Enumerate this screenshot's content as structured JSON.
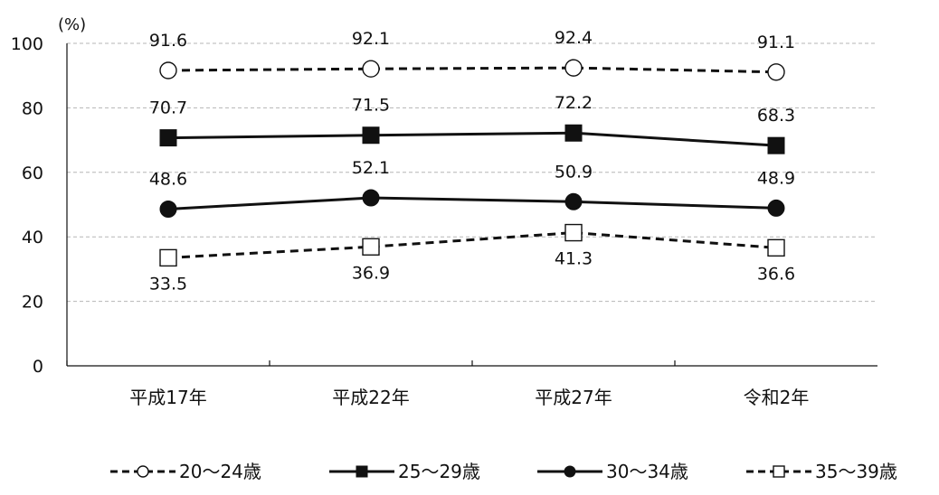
{
  "chart_data": {
    "type": "line",
    "unit_label": "(%)",
    "categories": [
      "平成17年",
      "平成22年",
      "平成27年",
      "令和2年"
    ],
    "ylim": [
      0,
      100
    ],
    "yticks": [
      "0",
      "20",
      "40",
      "60",
      "80",
      "100"
    ],
    "grid": true,
    "legend_position": "bottom",
    "series": [
      {
        "name": "20～24歳",
        "values": [
          91.6,
          92.1,
          92.4,
          91.1
        ],
        "labels": [
          "91.6",
          "92.1",
          "92.4",
          "91.1"
        ],
        "line": "dashed",
        "marker": "circle-open",
        "label_pos": "above"
      },
      {
        "name": "25～29歳",
        "values": [
          70.7,
          71.5,
          72.2,
          68.3
        ],
        "labels": [
          "70.7",
          "71.5",
          "72.2",
          "68.3"
        ],
        "line": "solid",
        "marker": "square-filled",
        "label_pos": "above"
      },
      {
        "name": "30～34歳",
        "values": [
          48.6,
          52.1,
          50.9,
          48.9
        ],
        "labels": [
          "48.6",
          "52.1",
          "50.9",
          "48.9"
        ],
        "line": "solid",
        "marker": "circle-filled",
        "label_pos": "above"
      },
      {
        "name": "35～39歳",
        "values": [
          33.5,
          36.9,
          41.3,
          36.6
        ],
        "labels": [
          "33.5",
          "36.9",
          "41.3",
          "36.6"
        ],
        "line": "dashed",
        "marker": "square-open",
        "label_pos": "below"
      }
    ]
  }
}
